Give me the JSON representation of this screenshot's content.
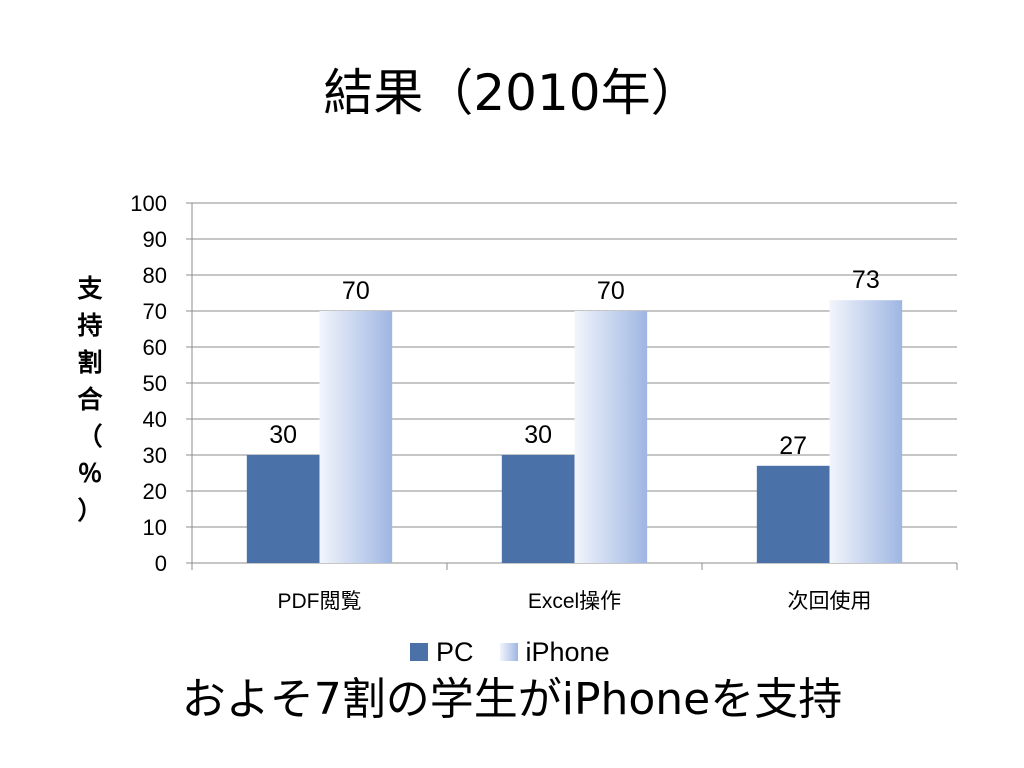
{
  "slide": {
    "title": "結果（2010年）",
    "footer": "およそ7割の学生がiPhoneを支持"
  },
  "chart_data": {
    "type": "bar",
    "title": "",
    "xlabel": "",
    "ylabel": "支持割合（％）",
    "ylabel_chars": [
      "支",
      "持",
      "割",
      "合",
      "（",
      "％",
      "）"
    ],
    "categories": [
      "PDF閲覧",
      "Excel操作",
      "次回使用"
    ],
    "ylim": [
      0,
      100
    ],
    "yticks": [
      0,
      10,
      20,
      30,
      40,
      50,
      60,
      70,
      80,
      90,
      100
    ],
    "grid": true,
    "legend_position": "bottom",
    "series": [
      {
        "name": "PC",
        "values": [
          30,
          30,
          27
        ],
        "color": "#4A72A8"
      },
      {
        "name": "iPhone",
        "values": [
          70,
          70,
          73
        ],
        "color_start": "#F2F5FC",
        "color_end": "#9FB6E2"
      }
    ]
  }
}
